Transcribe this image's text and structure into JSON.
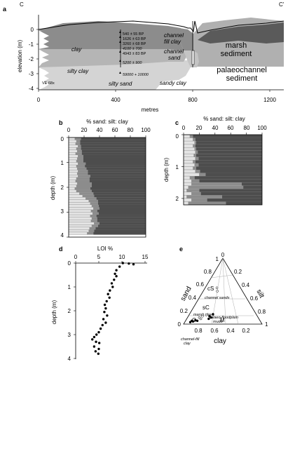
{
  "colors": {
    "clay": "#8c8c8c",
    "silty_clay": "#b5b5b5",
    "silty_sand": "#d4d4d4",
    "channel_sand": "#c4c4c4",
    "marsh": "#5a5a5a",
    "paleo": "#b0b0b0",
    "sand_bar": "#e3e3e3",
    "silt_bar": "#8c8c8c",
    "clay_bar": "#4d4d4d"
  },
  "panel_a": {
    "letter": "a",
    "corner_left": "C",
    "corner_right": "C'",
    "ylabel": "elevation (m)",
    "xlabel": "metres",
    "xticks": [
      "0",
      "400",
      "800",
      "1200"
    ],
    "yticks": [
      "0",
      "-1",
      "-2",
      "-3",
      "-4"
    ],
    "ve": "VE 68x",
    "units": {
      "clay": "clay",
      "silty_clay": "silty clay",
      "silty_sand": "silty sand",
      "sandy_clay": "sandy clay",
      "channel_fill_1": "channel",
      "channel_fill_2": "fill clay",
      "channel_sand_1": "channel",
      "channel_sand_2": "sand",
      "marsh_1": "marsh",
      "marsh_2": "sediment",
      "paleo_1": "palaeochannel",
      "paleo_2": "sediment"
    },
    "dates": [
      "540 ± 55 BP",
      "1626 ± 63 BP",
      "3260 ± 68 BP",
      "4100 ± 700",
      "4943 ± 83 BP",
      "5200 ± 900",
      "59000 + 10000"
    ]
  },
  "panel_b": {
    "letter": "b",
    "title": "% sand: silt: clay",
    "ylabel": "depth (m)",
    "xticks": [
      "0",
      "20",
      "40",
      "60",
      "80",
      "100"
    ],
    "yticks": [
      "0",
      "1",
      "2",
      "3",
      "4"
    ]
  },
  "panel_c": {
    "letter": "c",
    "title": "% sand: silt: clay",
    "ylabel": "depth (m)",
    "xticks": [
      "0",
      "20",
      "40",
      "60",
      "80",
      "100"
    ],
    "yticks": [
      "0",
      "1",
      "2"
    ]
  },
  "panel_d": {
    "letter": "d",
    "title": "LOI %",
    "ylabel": "depth (m)",
    "xticks": [
      "0",
      "5",
      "10",
      "15"
    ],
    "yticks": [
      "0",
      "1",
      "2",
      "3",
      "4"
    ]
  },
  "panel_e": {
    "letter": "e",
    "axis_sand": "sand",
    "axis_silt": "silt",
    "axis_clay": "clay",
    "field_cs": "cS",
    "field_sc": "sC",
    "field_c": "C",
    "field_m": "M",
    "label_channel_sands": "channel sands",
    "label_marsh_clays": "marsh clays",
    "label_paleo_1": "palaeo-floodplain",
    "label_paleo_2": "muds",
    "label_cf_1": "channel-fill",
    "label_cf_2": "clay",
    "ticks_left": [
      "0",
      "0.2",
      "0.4",
      "0.6",
      "0.8",
      "1"
    ],
    "ticks_right": [
      "0",
      "0.2",
      "0.4",
      "0.6",
      "0.8",
      "1"
    ],
    "ticks_bottom": [
      "1",
      "0.8",
      "0.6",
      "0.4",
      "0.2",
      "0"
    ]
  },
  "chart_data": [
    {
      "type": "bar",
      "panel": "b",
      "stacked": "horizontal",
      "x_label": "% sand: silt: clay",
      "y_label": "depth (m)",
      "xlim": [
        0,
        100
      ],
      "ylim": [
        0,
        4
      ],
      "depths": [
        0.0,
        0.1,
        0.2,
        0.3,
        0.4,
        0.5,
        0.6,
        0.7,
        0.8,
        0.9,
        1.0,
        1.1,
        1.2,
        1.3,
        1.4,
        1.5,
        1.6,
        1.7,
        1.8,
        1.9,
        2.0,
        2.1,
        2.2,
        2.3,
        2.4,
        2.5,
        2.6,
        2.7,
        2.8,
        2.9,
        3.0,
        3.1,
        3.2,
        3.3,
        3.4,
        3.5,
        3.6,
        3.7,
        3.8
      ],
      "sand": [
        8,
        10,
        9,
        12,
        10,
        11,
        9,
        12,
        11,
        10,
        12,
        10,
        11,
        12,
        11,
        12,
        10,
        9,
        11,
        10,
        8,
        10,
        14,
        18,
        22,
        26,
        28,
        30,
        32,
        29,
        31,
        28,
        30,
        29,
        33,
        30,
        27,
        26,
        24
      ],
      "silt": [
        8,
        5,
        6,
        4,
        6,
        6,
        8,
        7,
        8,
        9,
        10,
        11,
        12,
        13,
        14,
        16,
        17,
        18,
        19,
        20,
        20,
        20,
        18,
        15,
        14,
        12,
        10,
        9,
        8,
        8,
        8,
        8,
        7,
        8,
        7,
        8,
        8,
        7,
        8
      ]
    },
    {
      "type": "bar",
      "panel": "c",
      "stacked": "horizontal",
      "x_label": "% sand: silt: clay",
      "y_label": "depth (m)",
      "xlim": [
        0,
        100
      ],
      "ylim": [
        0,
        2.2
      ],
      "depths": [
        0.0,
        0.1,
        0.2,
        0.3,
        0.4,
        0.5,
        0.6,
        0.7,
        0.8,
        0.9,
        1.0,
        1.1,
        1.2,
        1.3,
        1.4,
        1.5,
        1.6,
        1.7,
        1.8,
        1.9,
        2.0,
        2.1
      ],
      "sand": [
        8,
        12,
        14,
        12,
        14,
        15,
        13,
        15,
        12,
        14,
        12,
        15,
        20,
        8,
        10,
        10,
        6,
        4,
        10,
        4,
        10,
        6
      ],
      "silt": [
        4,
        3,
        2,
        3,
        2,
        3,
        3,
        4,
        3,
        5,
        4,
        6,
        8,
        6,
        10,
        64,
        70,
        16,
        12,
        45,
        20,
        48
      ]
    },
    {
      "type": "scatter",
      "panel": "d",
      "x_label": "LOI %",
      "y_label": "depth (m)",
      "xlim": [
        0,
        15
      ],
      "ylim": [
        0,
        4
      ],
      "points": [
        [
          10.2,
          0.0
        ],
        [
          11.5,
          0.02
        ],
        [
          12.5,
          0.05
        ],
        [
          9.5,
          0.15
        ],
        [
          8.8,
          0.3
        ],
        [
          8.5,
          0.45
        ],
        [
          8.8,
          0.55
        ],
        [
          8.3,
          0.7
        ],
        [
          7.8,
          0.85
        ],
        [
          8.0,
          1.0
        ],
        [
          7.4,
          1.15
        ],
        [
          7.0,
          1.3
        ],
        [
          7.3,
          1.45
        ],
        [
          6.7,
          1.6
        ],
        [
          6.3,
          1.75
        ],
        [
          6.5,
          1.9
        ],
        [
          6.2,
          2.05
        ],
        [
          6.8,
          2.2
        ],
        [
          6.0,
          2.35
        ],
        [
          6.5,
          2.5
        ],
        [
          5.8,
          2.6
        ],
        [
          5.4,
          2.75
        ],
        [
          5.0,
          2.9
        ],
        [
          4.5,
          3.0
        ],
        [
          4.0,
          3.1
        ],
        [
          3.6,
          3.2
        ],
        [
          4.4,
          3.3
        ],
        [
          5.1,
          3.35
        ],
        [
          4.0,
          3.5
        ],
        [
          5.0,
          3.6
        ],
        [
          4.3,
          3.7
        ],
        [
          4.9,
          3.8
        ]
      ]
    },
    {
      "type": "scatter",
      "panel": "e",
      "ternary": true,
      "axes": [
        "sand",
        "silt",
        "clay"
      ],
      "points": [
        {
          "group": "channel sands",
          "sand": 0.55,
          "silt": 0.15,
          "clay": 0.3
        },
        {
          "group": "channel sands",
          "sand": 0.5,
          "silt": 0.18,
          "clay": 0.32
        },
        {
          "group": "marsh clays",
          "sand": 0.12,
          "silt": 0.18,
          "clay": 0.7
        },
        {
          "group": "marsh clays",
          "sand": 0.1,
          "silt": 0.15,
          "clay": 0.75
        },
        {
          "group": "marsh clays",
          "sand": 0.08,
          "silt": 0.18,
          "clay": 0.74
        },
        {
          "group": "marsh clays",
          "sand": 0.14,
          "silt": 0.22,
          "clay": 0.64
        },
        {
          "group": "palaeo-floodplain muds",
          "sand": 0.15,
          "silt": 0.3,
          "clay": 0.55
        },
        {
          "group": "palaeo-floodplain muds",
          "sand": 0.1,
          "silt": 0.3,
          "clay": 0.6
        },
        {
          "group": "palaeo-floodplain muds",
          "sand": 0.08,
          "silt": 0.28,
          "clay": 0.64
        },
        {
          "group": "palaeo-floodplain muds",
          "sand": 0.12,
          "silt": 0.27,
          "clay": 0.61
        },
        {
          "group": "channel-fill clay",
          "sand": 0.05,
          "silt": 0.08,
          "clay": 0.87
        },
        {
          "group": "channel-fill clay",
          "sand": 0.04,
          "silt": 0.1,
          "clay": 0.86
        },
        {
          "group": "channel-fill clay",
          "sand": 0.03,
          "silt": 0.07,
          "clay": 0.9
        },
        {
          "group": "channel-fill clay",
          "sand": 0.06,
          "silt": 0.12,
          "clay": 0.82
        },
        {
          "group": "channel-fill clay",
          "sand": 0.05,
          "silt": 0.15,
          "clay": 0.8
        }
      ]
    }
  ]
}
